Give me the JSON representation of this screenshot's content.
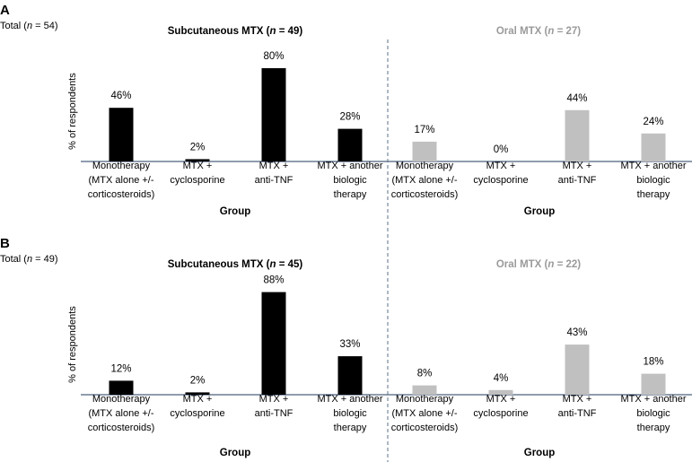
{
  "panels": [
    {
      "label": "A",
      "total_prefix": "Total (",
      "total_n": "n",
      "total_suffix": " = 54)",
      "ylabel": "% of respondents",
      "groups": [
        {
          "name": "Subcutaneous MTX",
          "n_label": "n",
          "n_value": " = 49)",
          "color": "#000000",
          "values": [
            46,
            2,
            80,
            28
          ],
          "value_labels": [
            "46%",
            "2%",
            "80%",
            "28%"
          ],
          "axis_label": "Group"
        },
        {
          "name": "Oral MTX",
          "n_label": "n",
          "n_value": " = 27)",
          "color": "#c0c0c0",
          "values": [
            17,
            0,
            44,
            24
          ],
          "value_labels": [
            "17%",
            "0%",
            "44%",
            "24%"
          ],
          "axis_label": "Group"
        }
      ]
    },
    {
      "label": "B",
      "total_prefix": "Total (",
      "total_n": "n",
      "total_suffix": " = 49)",
      "ylabel": "% of respondents",
      "groups": [
        {
          "name": "Subcutaneous MTX",
          "n_label": "n",
          "n_value": " = 45)",
          "color": "#000000",
          "values": [
            12,
            2,
            88,
            33
          ],
          "value_labels": [
            "12%",
            "2%",
            "88%",
            "33%"
          ],
          "axis_label": "Group"
        },
        {
          "name": "Oral MTX",
          "n_label": "n",
          "n_value": " = 22)",
          "color": "#c0c0c0",
          "values": [
            8,
            4,
            43,
            18
          ],
          "value_labels": [
            "8%",
            "4%",
            "43%",
            "18%"
          ],
          "axis_label": "Group"
        }
      ]
    }
  ],
  "chart_data": [
    {
      "type": "bar",
      "title": "A",
      "xlabel": "Group",
      "ylabel": "% of respondents",
      "categories": [
        "Monotherapy (MTX alone +/- corticosteroids)",
        "MTX + cyclosporine",
        "MTX + anti-TNF",
        "MTX + another biologic therapy"
      ],
      "ylim": [
        0,
        100
      ],
      "series": [
        {
          "name": "Subcutaneous MTX (n = 49)",
          "values": [
            46,
            2,
            80,
            28
          ]
        },
        {
          "name": "Oral MTX (n = 27)",
          "values": [
            17,
            0,
            44,
            24
          ]
        }
      ]
    },
    {
      "type": "bar",
      "title": "B",
      "xlabel": "Group",
      "ylabel": "% of respondents",
      "categories": [
        "Monotherapy (MTX alone +/- corticosteroids)",
        "MTX + cyclosporine",
        "MTX + anti-TNF",
        "MTX + another biologic therapy"
      ],
      "ylim": [
        0,
        100
      ],
      "series": [
        {
          "name": "Subcutaneous MTX (n = 45)",
          "values": [
            12,
            2,
            88,
            33
          ]
        },
        {
          "name": "Oral MTX (n = 22)",
          "values": [
            8,
            4,
            43,
            18
          ]
        }
      ]
    }
  ],
  "categories": [
    [
      "Monotherapy",
      "(MTX alone +/-",
      "corticosteroids)"
    ],
    [
      "MTX +",
      "cyclosporine"
    ],
    [
      "MTX +",
      "anti-TNF"
    ],
    [
      "MTX + another",
      "biologic",
      "therapy"
    ]
  ]
}
